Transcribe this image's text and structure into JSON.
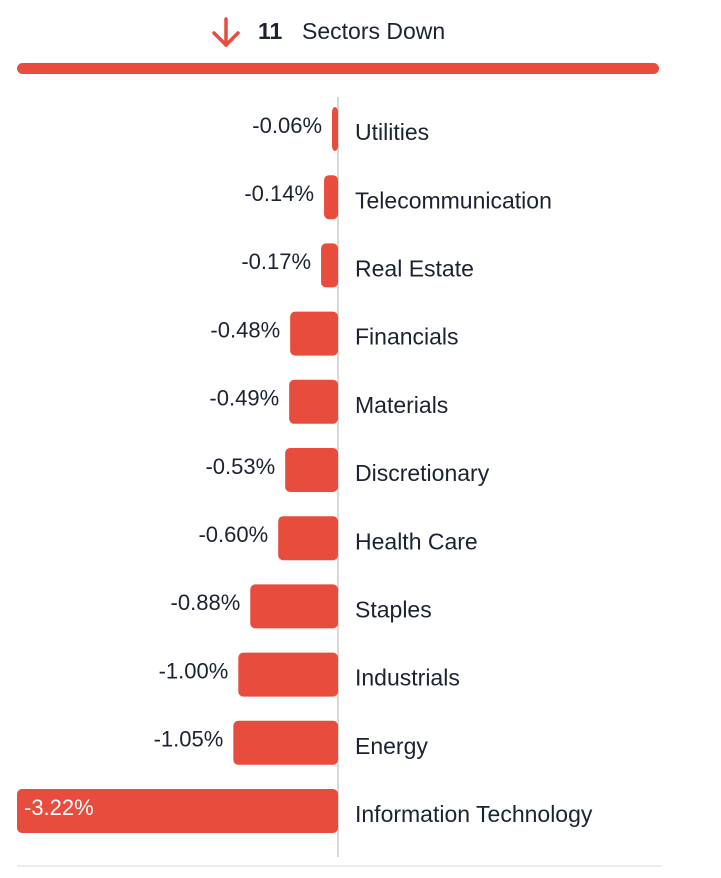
{
  "chart_data": {
    "type": "bar",
    "orientation": "horizontal",
    "count": 11,
    "title": "Sectors Down",
    "categories": [
      "Utilities",
      "Telecommunication",
      "Real Estate",
      "Financials",
      "Materials",
      "Discretionary",
      "Health Care",
      "Staples",
      "Industrials",
      "Energy",
      "Information Technology"
    ],
    "values": [
      -0.06,
      -0.14,
      -0.17,
      -0.48,
      -0.49,
      -0.53,
      -0.6,
      -0.88,
      -1.0,
      -1.05,
      -3.22
    ],
    "value_labels": [
      "-0.06%",
      "-0.14%",
      "-0.17%",
      "-0.48%",
      "-0.49%",
      "-0.53%",
      "-0.60%",
      "-0.88%",
      "-1.00%",
      "-1.05%",
      "-3.22%"
    ],
    "color": "#e84c3d",
    "xlim": [
      -3.22,
      0
    ]
  }
}
